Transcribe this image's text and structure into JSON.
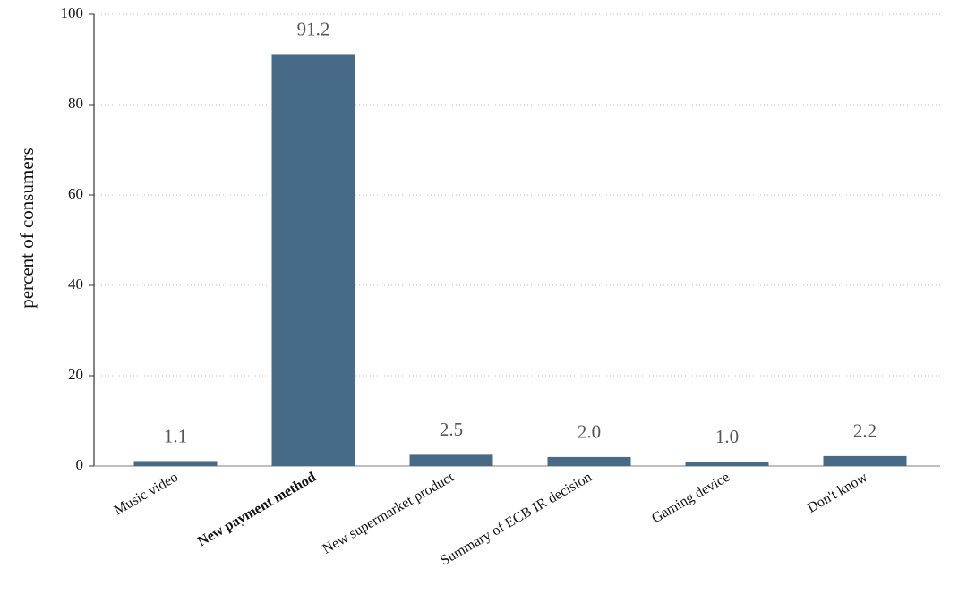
{
  "chart_data": {
    "type": "bar",
    "ylabel": "percent of consumers",
    "categories": [
      "Music video",
      "New payment method",
      "New supermarket product",
      "Summary of ECB IR decision",
      "Gaming device",
      "Don't know"
    ],
    "values": [
      1.1,
      91.2,
      2.5,
      2.0,
      1.0,
      2.2
    ],
    "value_labels": [
      "1.1",
      "91.2",
      "2.5",
      "2.0",
      "1.0",
      "2.2"
    ],
    "color": "#476a87",
    "highlight": 1,
    "ylim": [
      0,
      100
    ],
    "yticks": [
      0,
      20,
      40,
      60,
      80,
      100
    ],
    "grid": true
  }
}
